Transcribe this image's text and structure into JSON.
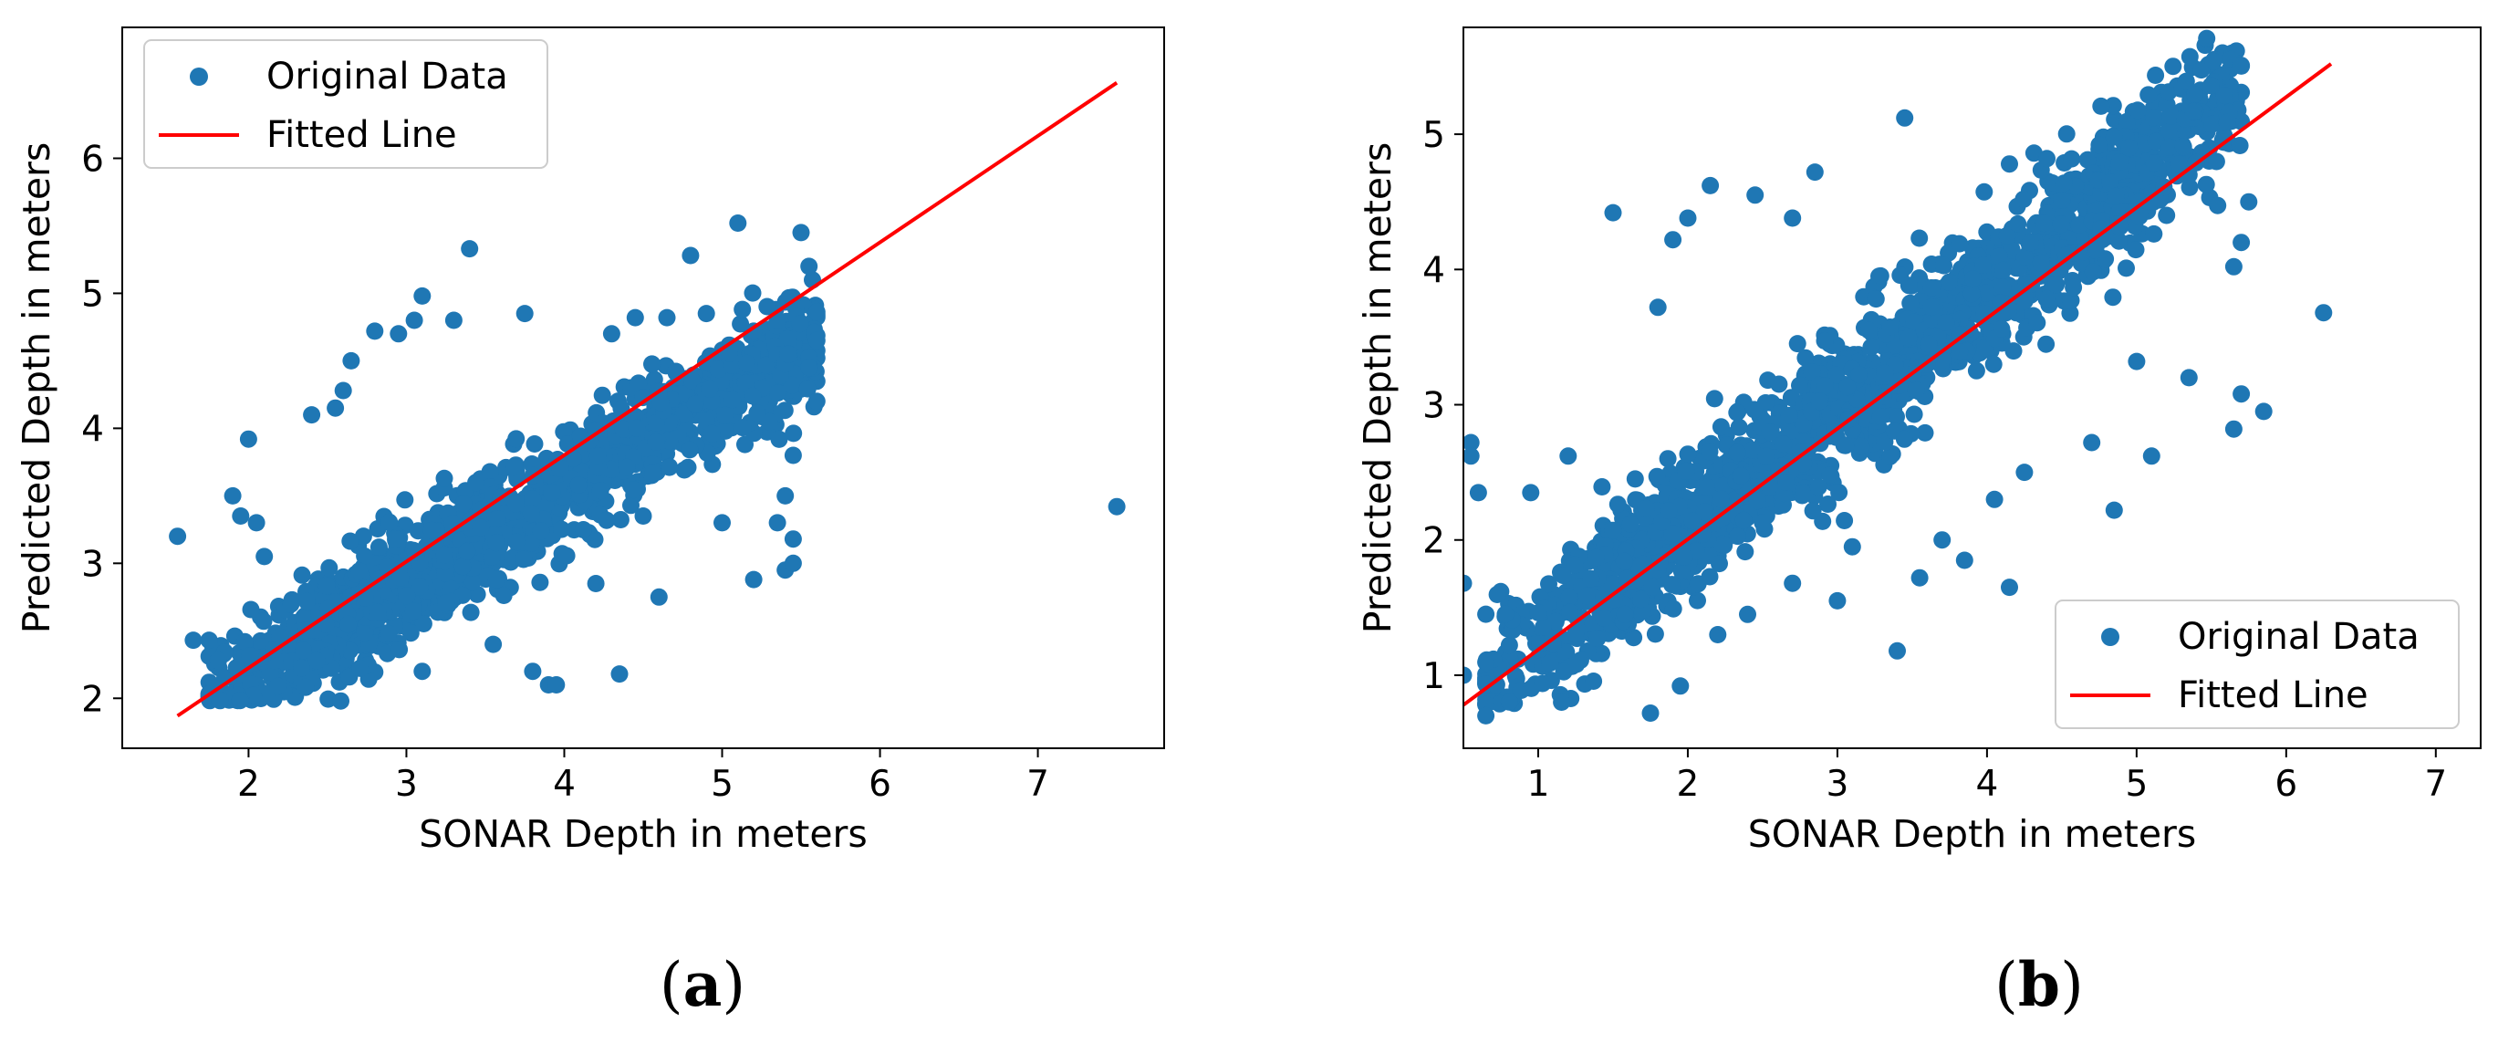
{
  "colors": {
    "data": "#1f77b4",
    "fit": "#ff0000",
    "axis": "#000000",
    "legend_border": "#cccccc"
  },
  "chart_data": [
    {
      "type": "scatter",
      "panel": "a",
      "caption_letter": "a",
      "xlabel": "SONAR Depth in meters",
      "ylabel": "Predicted Depth in meters",
      "xlim": [
        1.2,
        7.8
      ],
      "ylim": [
        1.63,
        6.97
      ],
      "xticks": [
        2,
        3,
        4,
        5,
        6,
        7
      ],
      "yticks": [
        2,
        3,
        4,
        5,
        6
      ],
      "legend_position": "upper-left",
      "series": [
        {
          "name": "Original Data",
          "kind": "points",
          "cluster": {
            "x_range": [
              1.75,
              5.6
            ],
            "slope": 0.68,
            "intercept": 0.85,
            "y_floor": 1.98,
            "spread": 0.38,
            "count": 1400
          },
          "outliers": [
            [
              1.55,
              3.2
            ],
            [
              1.65,
              2.43
            ],
            [
              1.75,
              2.43
            ],
            [
              2.0,
              3.92
            ],
            [
              1.9,
              3.5
            ],
            [
              1.95,
              3.35
            ],
            [
              2.05,
              3.3
            ],
            [
              2.1,
              3.05
            ],
            [
              3.4,
              5.33
            ],
            [
              3.1,
              4.98
            ],
            [
              3.3,
              4.8
            ],
            [
              5.1,
              5.52
            ],
            [
              4.8,
              5.28
            ],
            [
              5.5,
              5.45
            ],
            [
              5.55,
              5.2
            ],
            [
              5.6,
              4.65
            ],
            [
              7.5,
              3.42
            ],
            [
              3.8,
              2.2
            ],
            [
              3.9,
              2.1
            ],
            [
              3.95,
              2.1
            ],
            [
              4.35,
              2.18
            ],
            [
              5.2,
              2.88
            ],
            [
              5.4,
              2.95
            ],
            [
              5.45,
              3.0
            ],
            [
              5.45,
              3.18
            ],
            [
              5.0,
              3.3
            ],
            [
              4.5,
              3.35
            ],
            [
              3.1,
              2.2
            ],
            [
              3.55,
              2.4
            ],
            [
              4.2,
              2.85
            ],
            [
              4.6,
              2.75
            ],
            [
              2.8,
              4.72
            ],
            [
              2.95,
              4.7
            ],
            [
              3.05,
              4.8
            ],
            [
              3.75,
              4.85
            ],
            [
              4.3,
              4.7
            ],
            [
              4.45,
              4.82
            ],
            [
              4.65,
              4.82
            ],
            [
              4.9,
              4.85
            ],
            [
              5.2,
              4.72
            ],
            [
              5.35,
              4.8
            ],
            [
              5.55,
              4.45
            ],
            [
              5.6,
              4.2
            ],
            [
              5.45,
              3.8
            ],
            [
              5.4,
              3.5
            ],
            [
              5.35,
              3.3
            ],
            [
              2.4,
              4.1
            ],
            [
              2.6,
              4.28
            ],
            [
              2.55,
              4.15
            ],
            [
              2.65,
              4.5
            ]
          ]
        },
        {
          "name": "Fitted Line",
          "kind": "line",
          "x": [
            1.55,
            7.5
          ],
          "y": [
            1.87,
            6.56
          ]
        }
      ]
    },
    {
      "type": "scatter",
      "panel": "b",
      "caption_letter": "b",
      "xlabel": "SONAR Depth in meters",
      "ylabel": "Predicted Depth in meters",
      "xlim": [
        0.5,
        7.3
      ],
      "ylim": [
        0.46,
        5.79
      ],
      "xticks": [
        1,
        2,
        3,
        4,
        5,
        6,
        7
      ],
      "yticks": [
        1,
        2,
        3,
        4,
        5
      ],
      "legend_position": "lower-right",
      "series": [
        {
          "name": "Original Data",
          "kind": "points",
          "cluster": {
            "x_range": [
              0.65,
              5.7
            ],
            "slope": 0.86,
            "intercept": 0.4,
            "y_floor": 0.78,
            "spread": 0.5,
            "count": 1600
          },
          "outliers": [
            [
              0.55,
              2.72
            ],
            [
              0.55,
              2.62
            ],
            [
              0.5,
              1.68
            ],
            [
              0.5,
              1.0
            ],
            [
              0.6,
              2.35
            ],
            [
              0.65,
              0.7
            ],
            [
              0.95,
              2.35
            ],
            [
              1.2,
              2.62
            ],
            [
              1.5,
              4.42
            ],
            [
              1.75,
              0.72
            ],
            [
              1.8,
              3.72
            ],
            [
              2.0,
              4.38
            ],
            [
              1.9,
              4.22
            ],
            [
              2.15,
              4.62
            ],
            [
              2.45,
              4.55
            ],
            [
              2.7,
              4.38
            ],
            [
              2.85,
              4.72
            ],
            [
              3.45,
              5.12
            ],
            [
              4.15,
              4.78
            ],
            [
              4.4,
              4.82
            ],
            [
              4.75,
              4.92
            ],
            [
              4.85,
              4.98
            ],
            [
              4.95,
              4.9
            ],
            [
              5.35,
              4.7
            ],
            [
              5.2,
              4.4
            ],
            [
              5.75,
              4.5
            ],
            [
              5.7,
              4.2
            ],
            [
              5.65,
              4.02
            ],
            [
              6.25,
              3.68
            ],
            [
              5.85,
              2.95
            ],
            [
              5.7,
              3.08
            ],
            [
              5.65,
              2.82
            ],
            [
              5.35,
              3.2
            ],
            [
              5.1,
              2.62
            ],
            [
              4.85,
              2.22
            ],
            [
              4.15,
              1.65
            ],
            [
              3.55,
              1.72
            ],
            [
              3.4,
              1.18
            ],
            [
              3.7,
              2.0
            ],
            [
              4.25,
              2.5
            ],
            [
              4.7,
              2.72
            ],
            [
              5.0,
              3.32
            ],
            [
              3.0,
              1.55
            ],
            [
              2.7,
              1.68
            ],
            [
              3.85,
              1.85
            ],
            [
              4.05,
              2.3
            ],
            [
              2.2,
              1.3
            ],
            [
              1.95,
              0.92
            ],
            [
              2.4,
              1.45
            ],
            [
              3.1,
              1.95
            ]
          ]
        },
        {
          "name": "Fitted Line",
          "kind": "line",
          "x": [
            0.5,
            6.3
          ],
          "y": [
            0.78,
            5.52
          ]
        }
      ]
    }
  ]
}
